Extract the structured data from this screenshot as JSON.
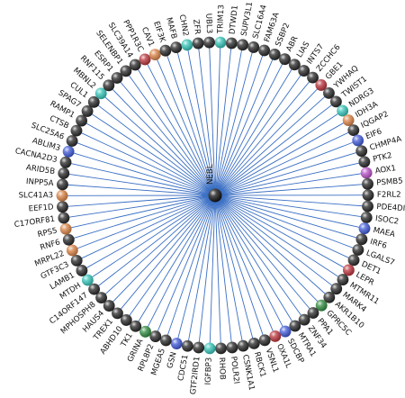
{
  "center": {
    "label": "NEBL",
    "color": "#111111"
  },
  "colors": {
    "black": "#262626",
    "teal": "#33c3b7",
    "red": "#b8323a",
    "orange": "#d98245",
    "blue": "#3f58d6",
    "green": "#2f8a3f",
    "purple": "#b74fc6"
  },
  "nodes": [
    {
      "label": "TRIM13",
      "color": "teal"
    },
    {
      "label": "DTWD1",
      "color": "black"
    },
    {
      "label": "SUPV3L1",
      "color": "black"
    },
    {
      "label": "SLC16A4",
      "color": "black"
    },
    {
      "label": "FAM63A",
      "color": "black"
    },
    {
      "label": "SSBP2",
      "color": "black"
    },
    {
      "label": "ABR",
      "color": "black"
    },
    {
      "label": "LIAS",
      "color": "black"
    },
    {
      "label": "INTS7",
      "color": "black"
    },
    {
      "label": "ZCCHC6",
      "color": "black"
    },
    {
      "label": "GBE1",
      "color": "red"
    },
    {
      "label": "YWHAQ",
      "color": "black"
    },
    {
      "label": "TWIST1",
      "color": "black"
    },
    {
      "label": "NDRG3",
      "color": "teal"
    },
    {
      "label": "IDH3A",
      "color": "orange"
    },
    {
      "label": "IQGAP2",
      "color": "black"
    },
    {
      "label": "EIF6",
      "color": "blue"
    },
    {
      "label": "CHMP4A",
      "color": "black"
    },
    {
      "label": "PTK2",
      "color": "black"
    },
    {
      "label": "AOX1",
      "color": "purple"
    },
    {
      "label": "PSMB5",
      "color": "black"
    },
    {
      "label": "F2RL2",
      "color": "black"
    },
    {
      "label": "PDE4DI",
      "color": "black"
    },
    {
      "label": "ISOC2",
      "color": "black"
    },
    {
      "label": "MAEA",
      "color": "blue"
    },
    {
      "label": "IRF6",
      "color": "black"
    },
    {
      "label": "LGALS7",
      "color": "black"
    },
    {
      "label": "DET1",
      "color": "black"
    },
    {
      "label": "LEPR",
      "color": "red"
    },
    {
      "label": "MTMR11",
      "color": "black"
    },
    {
      "label": "MARK4",
      "color": "black"
    },
    {
      "label": "AKR1B10",
      "color": "black"
    },
    {
      "label": "GPRC5C",
      "color": "green"
    },
    {
      "label": "PPA1",
      "color": "black"
    },
    {
      "label": "ZNF34",
      "color": "black"
    },
    {
      "label": "MTRA1",
      "color": "black"
    },
    {
      "label": "SDCBP",
      "color": "blue"
    },
    {
      "label": "OXA1L",
      "color": "red"
    },
    {
      "label": "VSNL1",
      "color": "black"
    },
    {
      "label": "RBCK1",
      "color": "black"
    },
    {
      "label": "CSNK1A1",
      "color": "black"
    },
    {
      "label": "POLR2I",
      "color": "black"
    },
    {
      "label": "RHOB",
      "color": "black"
    },
    {
      "label": "IGFBP3",
      "color": "teal"
    },
    {
      "label": "GTF2IRD1",
      "color": "black"
    },
    {
      "label": "CDC51",
      "color": "black"
    },
    {
      "label": "GSN",
      "color": "blue"
    },
    {
      "label": "MGEA5",
      "color": "black"
    },
    {
      "label": "RPL8P2",
      "color": "black"
    },
    {
      "label": "GRINA",
      "color": "green"
    },
    {
      "label": "TK1",
      "color": "black"
    },
    {
      "label": "ABHD10",
      "color": "black"
    },
    {
      "label": "TREX1",
      "color": "black"
    },
    {
      "label": "HAUS4",
      "color": "black"
    },
    {
      "label": "MPHOSPH8",
      "color": "black"
    },
    {
      "label": "C14ORF147",
      "color": "black"
    },
    {
      "label": "MTDH",
      "color": "teal"
    },
    {
      "label": "LAMB1",
      "color": "black"
    },
    {
      "label": "GTF3C3",
      "color": "black"
    },
    {
      "label": "MRPL22",
      "color": "orange"
    },
    {
      "label": "RNF6",
      "color": "black"
    },
    {
      "label": "RPS5",
      "color": "orange"
    },
    {
      "label": "C17ORF81",
      "color": "black"
    },
    {
      "label": "EEF1D",
      "color": "black"
    },
    {
      "label": "SLC41A3",
      "color": "orange"
    },
    {
      "label": "INPP5A",
      "color": "black"
    },
    {
      "label": "ARID5B",
      "color": "black"
    },
    {
      "label": "CACNA2D3",
      "color": "black"
    },
    {
      "label": "ABLIM3",
      "color": "blue"
    },
    {
      "label": "SLC25A6",
      "color": "black"
    },
    {
      "label": "CTSB",
      "color": "black"
    },
    {
      "label": "RAMP1",
      "color": "black"
    },
    {
      "label": "SPAG7",
      "color": "black"
    },
    {
      "label": "CUL1",
      "color": "black"
    },
    {
      "label": "MBNL2",
      "color": "teal"
    },
    {
      "label": "RNF115",
      "color": "black"
    },
    {
      "label": "ESRP1",
      "color": "black"
    },
    {
      "label": "SELENBP1",
      "color": "black"
    },
    {
      "label": "SLC39A14",
      "color": "black"
    },
    {
      "label": "PPP1R3C",
      "color": "red"
    },
    {
      "label": "CAV1",
      "color": "orange"
    },
    {
      "label": "EIF3K",
      "color": "black"
    },
    {
      "label": "MAFB",
      "color": "black"
    },
    {
      "label": "CHN2",
      "color": "teal"
    },
    {
      "label": "ZFR",
      "color": "black"
    },
    {
      "label": "UBL3",
      "color": "black"
    }
  ]
}
